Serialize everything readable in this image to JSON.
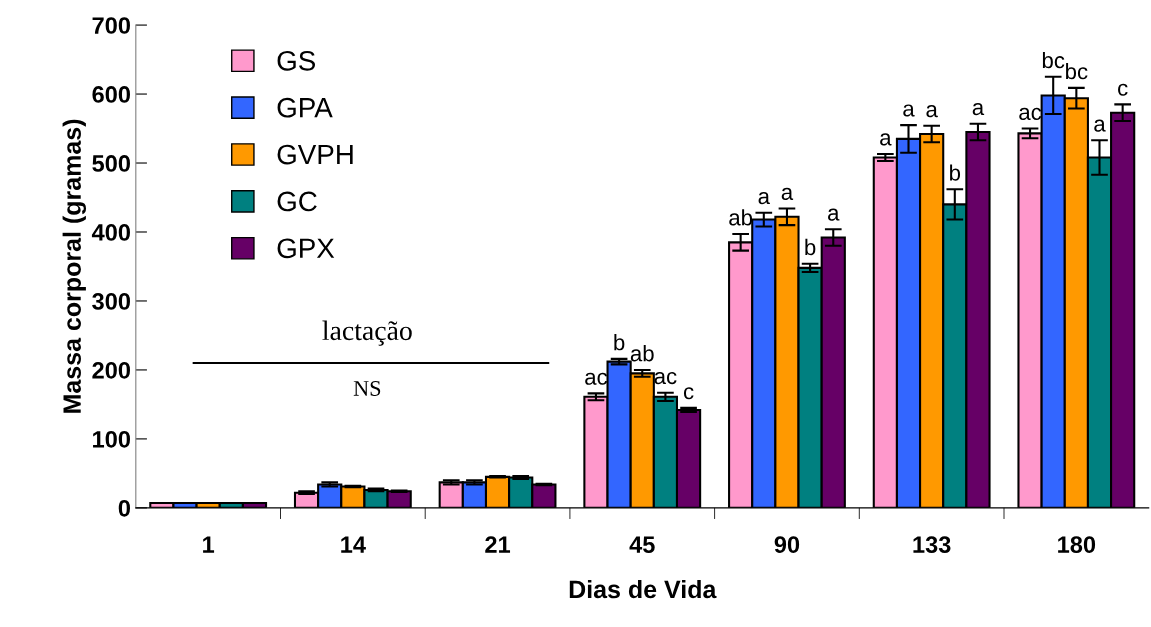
{
  "chart_data": {
    "type": "bar",
    "xlabel": "Dias de Vida",
    "ylabel": "Massa corporal (gramas)",
    "categories": [
      "1",
      "14",
      "21",
      "45",
      "90",
      "133",
      "180"
    ],
    "series": [
      {
        "name": "GS",
        "color": "#ff99cc",
        "values": [
          7,
          22,
          37,
          161,
          385,
          508,
          543
        ],
        "errors": [
          null,
          2,
          3,
          5,
          12,
          5,
          7
        ],
        "value_labels": [
          null,
          null,
          null,
          "ac",
          "ab",
          "a",
          "ac"
        ]
      },
      {
        "name": "GPA",
        "color": "#3366ff",
        "values": [
          7,
          34,
          37,
          212,
          418,
          535,
          598
        ],
        "errors": [
          null,
          3,
          3,
          4,
          10,
          20,
          27
        ],
        "value_labels": [
          null,
          null,
          null,
          "b",
          "a",
          "a",
          "bc"
        ]
      },
      {
        "name": "GVPH",
        "color": "#ff9900",
        "values": [
          7,
          31,
          45,
          195,
          422,
          542,
          594
        ],
        "errors": [
          null,
          1,
          1,
          5,
          12,
          12,
          15
        ],
        "value_labels": [
          null,
          null,
          null,
          "ab",
          "a",
          "a",
          "bc"
        ]
      },
      {
        "name": "GC",
        "color": "#008080",
        "values": [
          7,
          26,
          44,
          161,
          348,
          440,
          508
        ],
        "errors": [
          null,
          2,
          2,
          6,
          6,
          22,
          25
        ],
        "value_labels": [
          null,
          null,
          null,
          "ac",
          "b",
          "b",
          "a"
        ]
      },
      {
        "name": "GPX",
        "color": "#660066",
        "values": [
          7,
          24,
          34,
          142,
          392,
          545,
          573
        ],
        "errors": [
          null,
          1,
          1,
          3,
          12,
          12,
          12
        ],
        "value_labels": [
          null,
          null,
          null,
          "c",
          "a",
          "a",
          "c"
        ]
      }
    ],
    "ylim": [
      0,
      700
    ],
    "yticks": [
      0,
      100,
      200,
      300,
      400,
      500,
      600,
      700
    ],
    "annotations": [
      "lactação",
      "NS"
    ],
    "grid": false,
    "legend": "top left"
  }
}
